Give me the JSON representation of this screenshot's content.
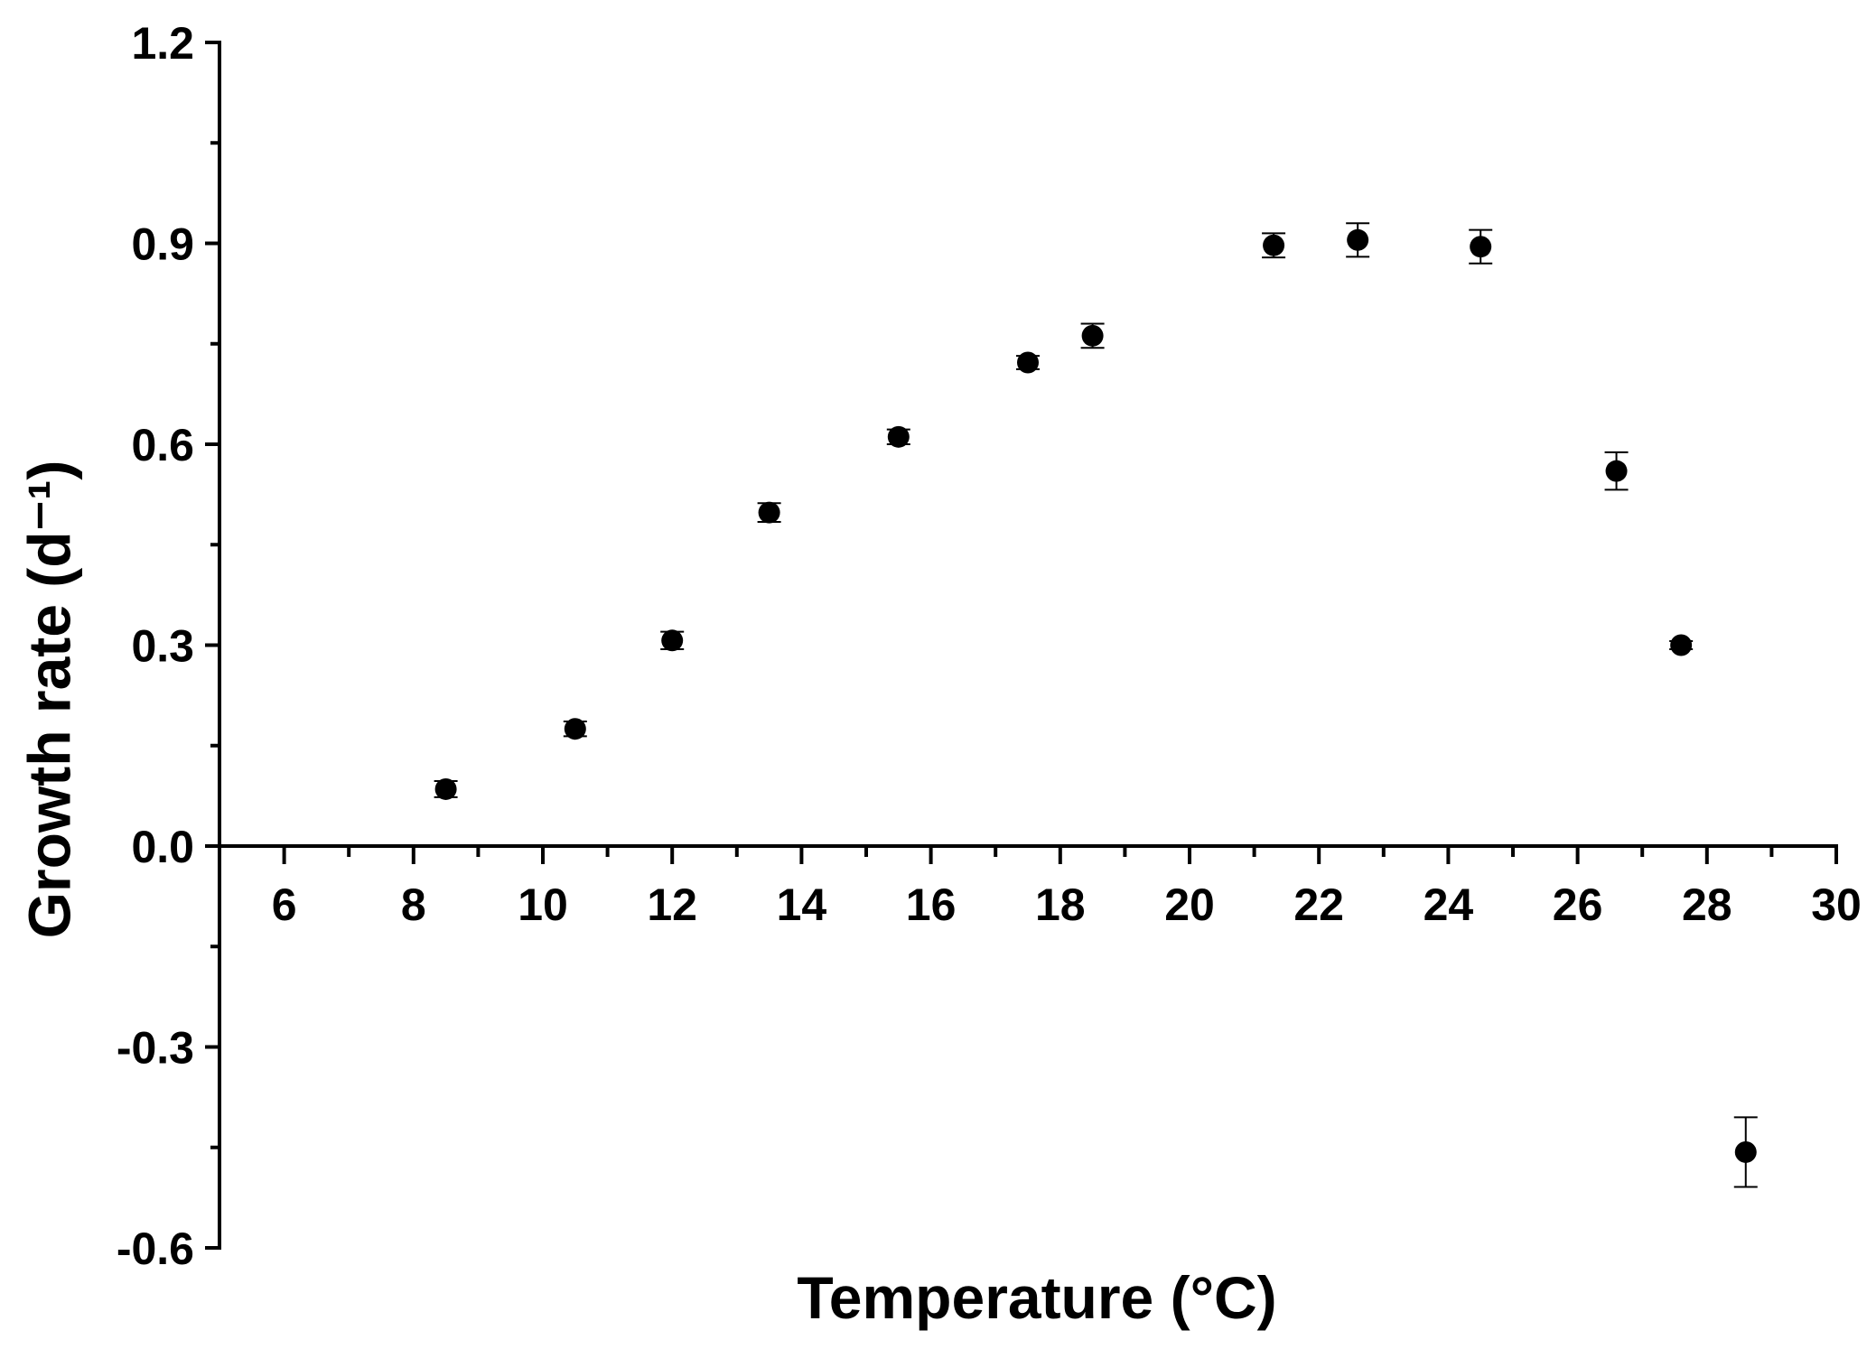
{
  "chart_data": {
    "type": "scatter",
    "title": "",
    "xlabel": "Temperature (°C)",
    "ylabel": "Growth rate (d⁻¹)",
    "xlim": [
      5,
      30
    ],
    "ylim": [
      -0.6,
      1.2
    ],
    "x_ticks": [
      "6",
      "8",
      "10",
      "12",
      "14",
      "16",
      "18",
      "20",
      "22",
      "24",
      "26",
      "28",
      "30"
    ],
    "y_ticks": [
      "1.2",
      "0.9",
      "0.6",
      "0.3",
      "0.0",
      "-0.3",
      "-0.6"
    ],
    "grid": false,
    "legend": "none",
    "marker_color": "#000000",
    "series": [
      {
        "x": [
          8.5,
          10.5,
          12.0,
          13.5,
          15.5,
          17.5,
          18.5,
          21.3,
          22.6,
          24.5,
          26.6,
          27.6,
          28.6
        ],
        "y": [
          0.085,
          0.175,
          0.307,
          0.498,
          0.611,
          0.722,
          0.762,
          0.897,
          0.905,
          0.895,
          0.56,
          0.3,
          -0.457
        ],
        "error": [
          0.012,
          0.011,
          0.013,
          0.014,
          0.011,
          0.01,
          0.018,
          0.018,
          0.025,
          0.025,
          0.028,
          0.006,
          0.052
        ]
      }
    ]
  }
}
